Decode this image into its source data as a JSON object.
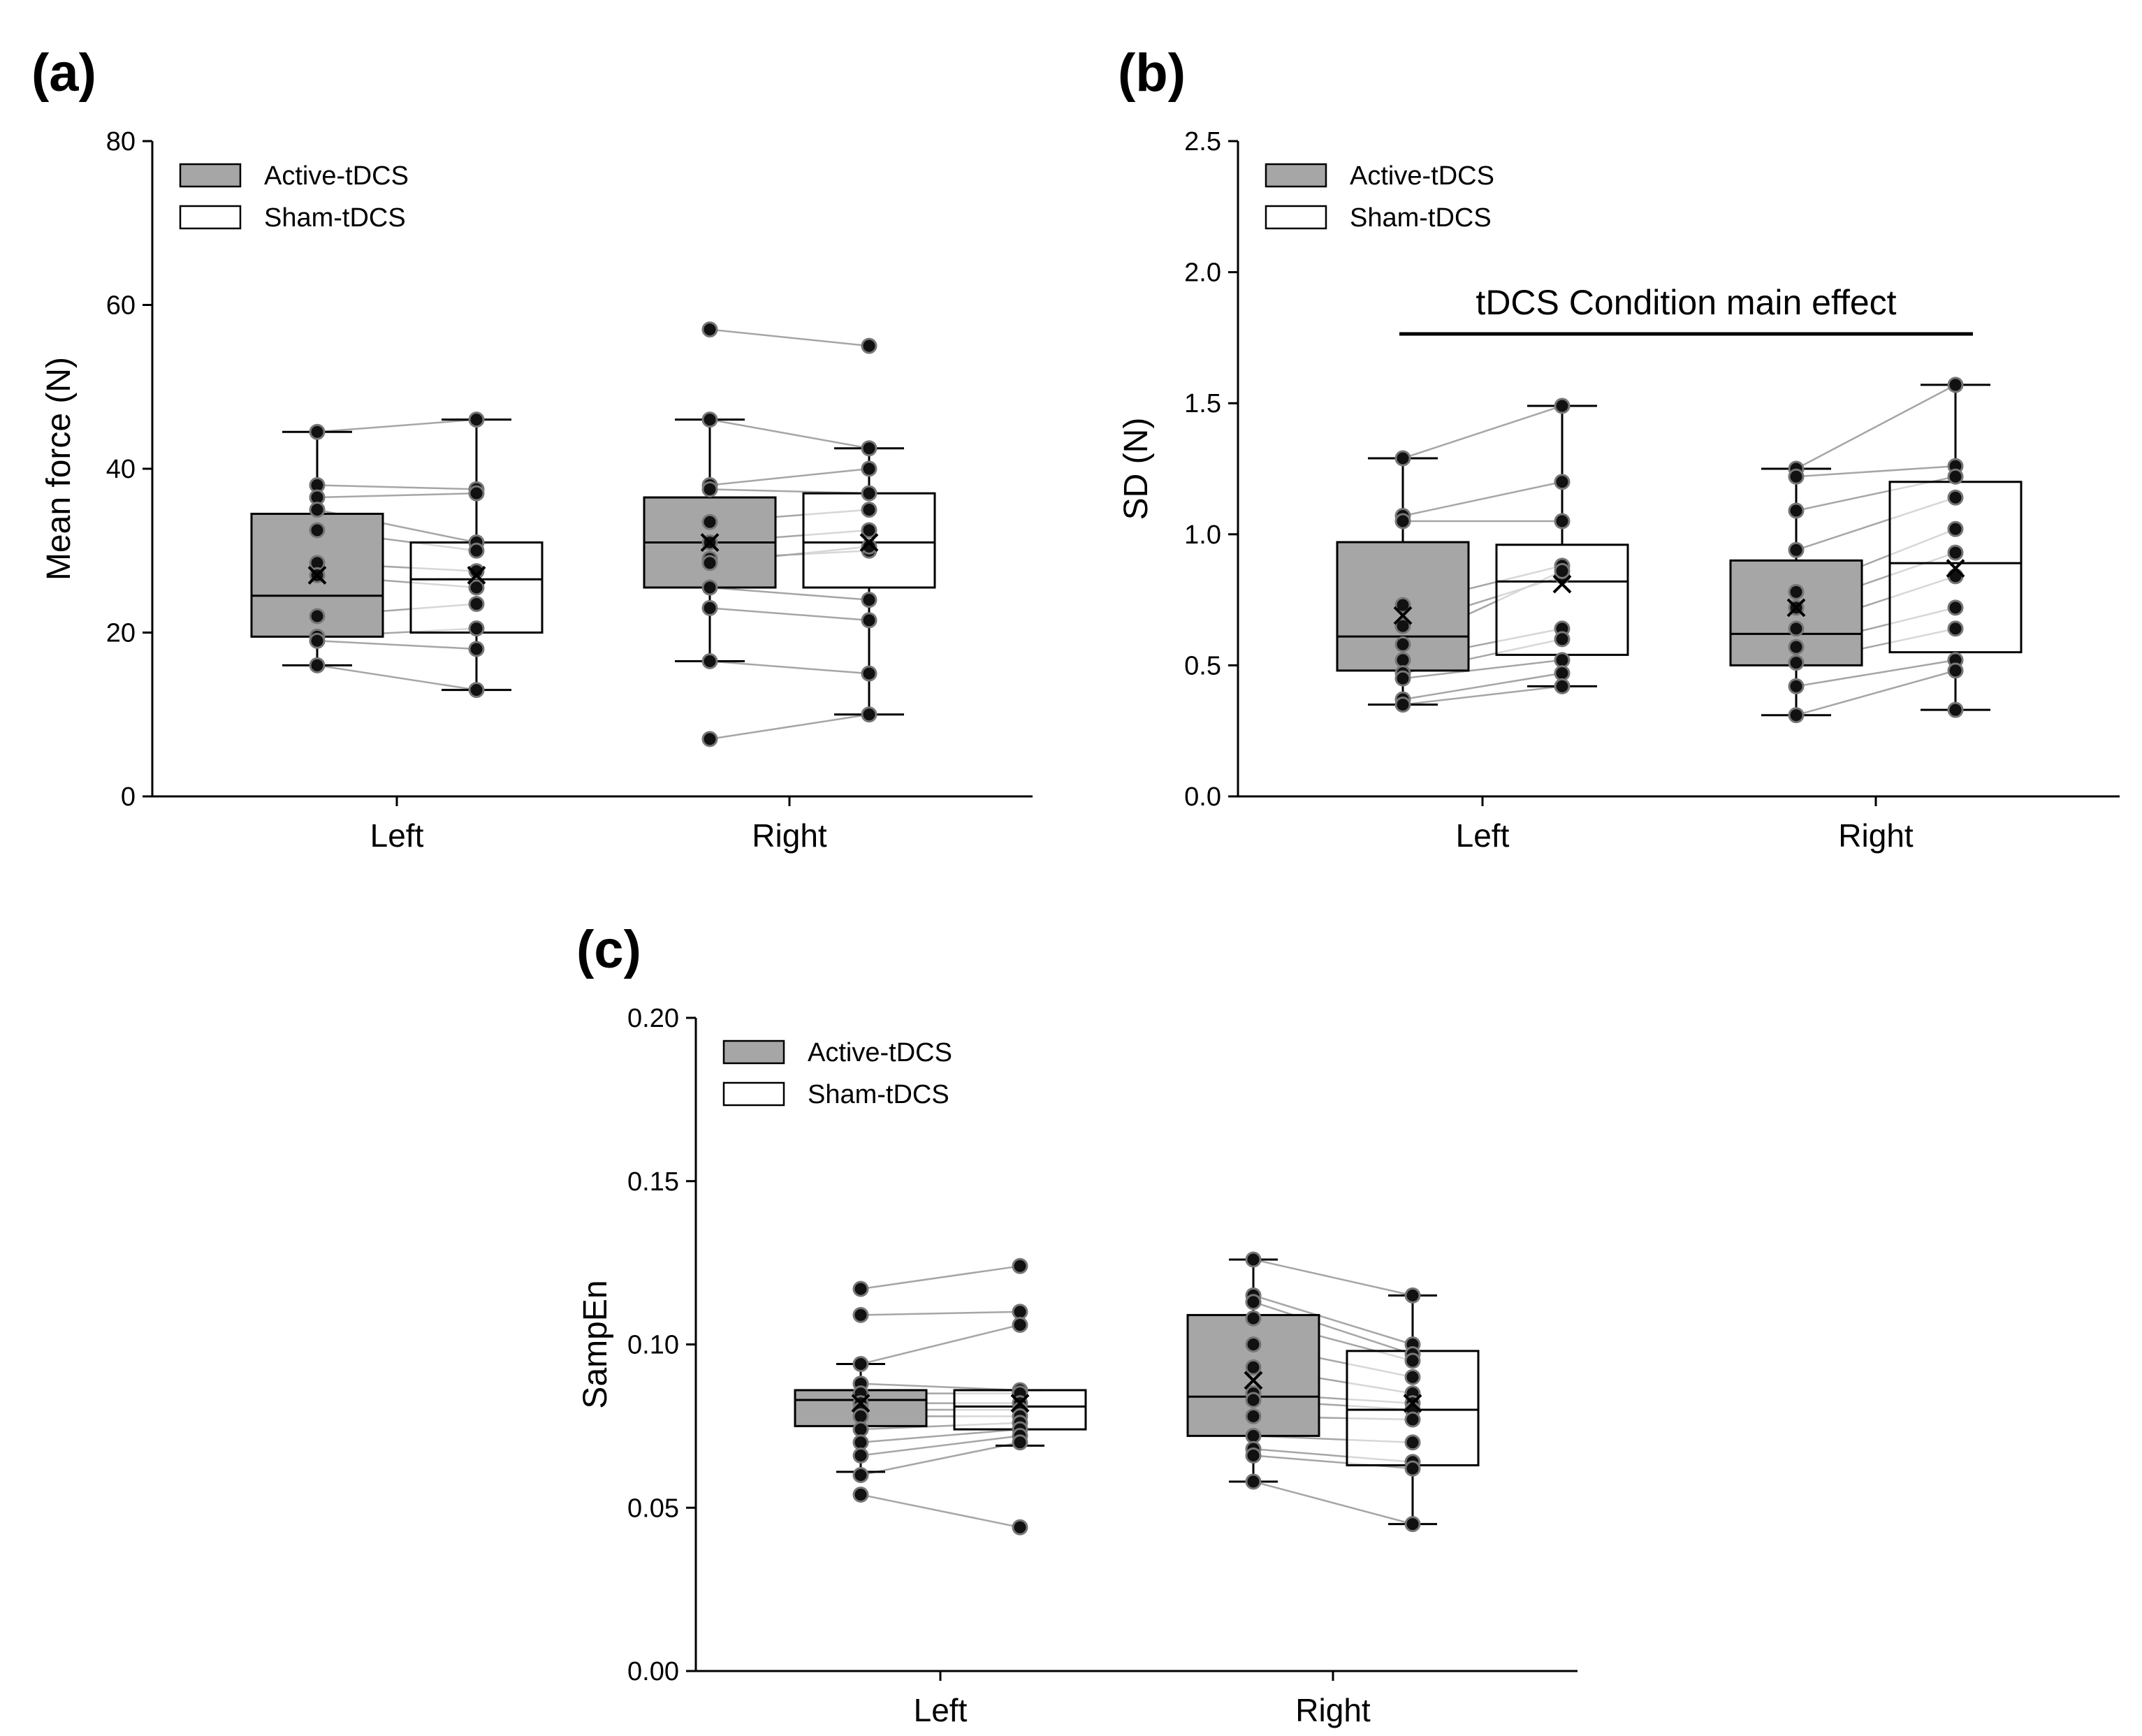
{
  "colors": {
    "active_fill": "#a6a6a6",
    "sham_fill": "#ffffff",
    "point": "#111111",
    "pair_line": "#a6a6a6",
    "axis": "#000000"
  },
  "chart_data": [
    {
      "type": "box",
      "panel_label": "(a)",
      "ylabel": "Mean force (N)",
      "ylim": [
        0,
        80
      ],
      "yticks": [
        "0",
        "20",
        "40",
        "60",
        "80"
      ],
      "ytick_values": [
        0,
        20,
        40,
        60,
        80
      ],
      "categories": [
        "Left",
        "Right"
      ],
      "legend": {
        "position": "top-left",
        "entries": [
          "Active-tDCS",
          "Sham-tDCS"
        ]
      },
      "annotation": "",
      "series": [
        {
          "name": "Active-tDCS",
          "fill": "#a6a6a6",
          "boxes": [
            {
              "category": "Left",
              "min": 16,
              "q1": 19.5,
              "median": 24.5,
              "q3": 34.5,
              "max": 44.5,
              "mean": 27
            },
            {
              "category": "Right",
              "min": 16.5,
              "q1": 25.5,
              "median": 31,
              "q3": 36.5,
              "max": 46,
              "mean": 31
            }
          ]
        },
        {
          "name": "Sham-tDCS",
          "fill": "#ffffff",
          "boxes": [
            {
              "category": "Left",
              "min": 13,
              "q1": 20,
              "median": 26.5,
              "q3": 31,
              "max": 46,
              "mean": 27
            },
            {
              "category": "Right",
              "min": 10,
              "q1": 25.5,
              "median": 31,
              "q3": 37,
              "max": 42.5,
              "mean": 31
            }
          ]
        }
      ],
      "pairs": [
        {
          "category": "Left",
          "active": [
            44.5,
            38,
            36.5,
            35,
            32.5,
            28.5,
            27,
            22,
            19.5,
            19,
            16
          ],
          "sham": [
            46,
            37.5,
            37,
            31,
            30,
            27.5,
            25.5,
            23.5,
            20.5,
            18,
            13
          ]
        },
        {
          "category": "Right",
          "active": [
            57,
            46,
            38,
            37.5,
            33.5,
            31,
            29,
            28.5,
            25.5,
            23,
            16.5,
            7
          ],
          "sham": [
            55,
            42.5,
            40,
            37,
            35,
            32.5,
            30,
            30.5,
            24,
            21.5,
            15,
            10
          ]
        }
      ]
    },
    {
      "type": "box",
      "panel_label": "(b)",
      "ylabel": "SD (N)",
      "ylim": [
        0,
        2.5
      ],
      "yticks": [
        "0.0",
        "0.5",
        "1.0",
        "1.5",
        "2.0",
        "2.5"
      ],
      "ytick_values": [
        0,
        0.5,
        1.0,
        1.5,
        2.0,
        2.5
      ],
      "categories": [
        "Left",
        "Right"
      ],
      "legend": {
        "position": "top-left",
        "entries": [
          "Active-tDCS",
          "Sham-tDCS"
        ]
      },
      "annotation": "tDCS Condition main effect",
      "series": [
        {
          "name": "Active-tDCS",
          "fill": "#a6a6a6",
          "boxes": [
            {
              "category": "Left",
              "min": 0.35,
              "q1": 0.48,
              "median": 0.61,
              "q3": 0.97,
              "max": 1.29,
              "mean": 0.69
            },
            {
              "category": "Right",
              "min": 0.31,
              "q1": 0.5,
              "median": 0.62,
              "q3": 0.9,
              "max": 1.25,
              "mean": 0.72
            }
          ]
        },
        {
          "name": "Sham-tDCS",
          "fill": "#ffffff",
          "boxes": [
            {
              "category": "Left",
              "min": 0.42,
              "q1": 0.54,
              "median": 0.82,
              "q3": 0.96,
              "max": 1.49,
              "mean": 0.81
            },
            {
              "category": "Right",
              "min": 0.33,
              "q1": 0.55,
              "median": 0.89,
              "q3": 1.2,
              "max": 1.57,
              "mean": 0.87
            }
          ]
        }
      ],
      "pairs": [
        {
          "category": "Left",
          "active": [
            1.29,
            1.07,
            1.05,
            0.73,
            0.65,
            0.58,
            0.52,
            0.47,
            0.45,
            0.37,
            0.35
          ],
          "sham": [
            1.49,
            1.2,
            1.05,
            0.88,
            0.84,
            0.86,
            0.64,
            0.6,
            0.52,
            0.47,
            0.42
          ]
        },
        {
          "category": "Right",
          "active": [
            1.25,
            1.22,
            1.09,
            0.94,
            0.78,
            0.72,
            0.64,
            0.57,
            0.51,
            0.42,
            0.31
          ],
          "sham": [
            1.57,
            1.26,
            1.22,
            1.14,
            1.02,
            0.93,
            0.84,
            0.72,
            0.64,
            0.52,
            0.48,
            0.33
          ]
        }
      ]
    },
    {
      "type": "box",
      "panel_label": "(c)",
      "ylabel": "SampEn",
      "ylim": [
        0,
        0.2
      ],
      "yticks": [
        "0.00",
        "0.05",
        "0.10",
        "0.15",
        "0.20"
      ],
      "ytick_values": [
        0,
        0.05,
        0.1,
        0.15,
        0.2
      ],
      "categories": [
        "Left",
        "Right"
      ],
      "legend": {
        "position": "top-left",
        "entries": [
          "Active-tDCS",
          "Sham-tDCS"
        ]
      },
      "annotation": "",
      "series": [
        {
          "name": "Active-tDCS",
          "fill": "#a6a6a6",
          "boxes": [
            {
              "category": "Left",
              "min": 0.061,
              "q1": 0.075,
              "median": 0.083,
              "q3": 0.086,
              "max": 0.094,
              "mean": 0.082
            },
            {
              "category": "Right",
              "min": 0.058,
              "q1": 0.072,
              "median": 0.084,
              "q3": 0.109,
              "max": 0.126,
              "mean": 0.089
            }
          ]
        },
        {
          "name": "Sham-tDCS",
          "fill": "#ffffff",
          "boxes": [
            {
              "category": "Left",
              "min": 0.069,
              "q1": 0.074,
              "median": 0.081,
              "q3": 0.086,
              "max": 0.086,
              "mean": 0.082
            },
            {
              "category": "Right",
              "min": 0.045,
              "q1": 0.063,
              "median": 0.08,
              "q3": 0.098,
              "max": 0.115,
              "mean": 0.082
            }
          ]
        }
      ],
      "pairs": [
        {
          "category": "Left",
          "active": [
            0.117,
            0.109,
            0.094,
            0.088,
            0.085,
            0.082,
            0.08,
            0.078,
            0.074,
            0.07,
            0.066,
            0.06,
            0.054
          ],
          "sham": [
            0.124,
            0.11,
            0.106,
            0.086,
            0.085,
            0.082,
            0.08,
            0.078,
            0.076,
            0.074,
            0.072,
            0.07,
            0.044
          ]
        },
        {
          "category": "Right",
          "active": [
            0.126,
            0.115,
            0.113,
            0.108,
            0.1,
            0.093,
            0.085,
            0.083,
            0.078,
            0.072,
            0.068,
            0.066,
            0.058
          ],
          "sham": [
            0.115,
            0.1,
            0.097,
            0.095,
            0.09,
            0.085,
            0.082,
            0.08,
            0.077,
            0.07,
            0.064,
            0.062,
            0.045
          ]
        }
      ]
    }
  ]
}
